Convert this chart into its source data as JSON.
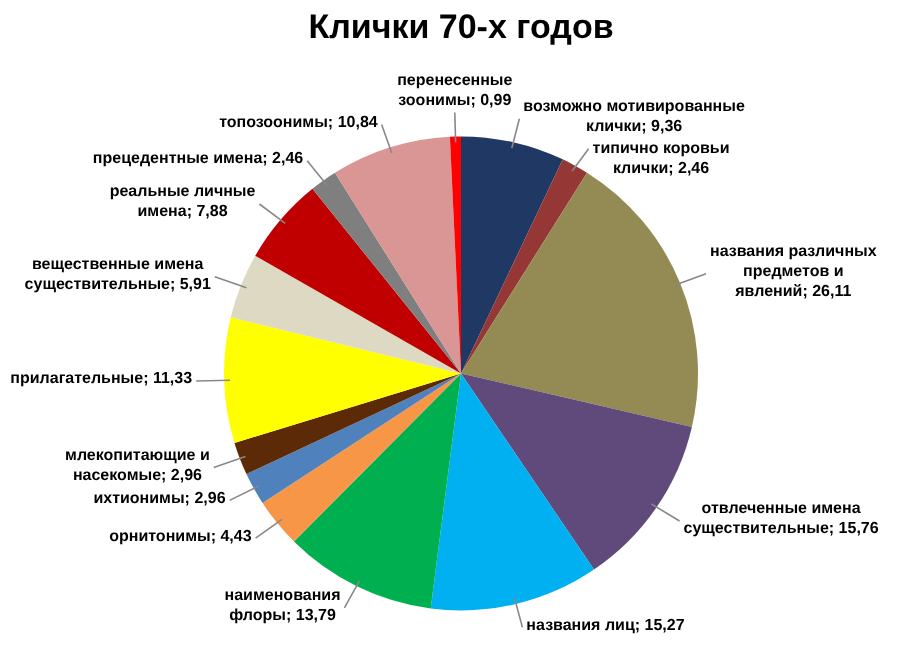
{
  "chart_data": {
    "type": "pie",
    "title": "Клички 70-х годов",
    "categories": [
      "возможно мотивированные клички",
      "типично коровьи клички",
      "названия различных предметов и явлений",
      "отвлеченные имена существительные",
      "названия лиц",
      "наименования флоры",
      "орнитонимы",
      "ихтионимы",
      "млекопитающие и насекомые",
      "прилагательные",
      "вещественные имена существительные",
      "реальные личные имена",
      "прецедентные имена",
      "топозоонимы",
      "перенесенные зоонимы"
    ],
    "values": [
      9.36,
      2.46,
      26.11,
      15.76,
      15.27,
      13.79,
      4.43,
      2.96,
      2.96,
      11.33,
      5.91,
      7.88,
      2.46,
      10.84,
      0.99
    ],
    "value_labels": [
      "9,36",
      "2,46",
      "26,11",
      "15,76",
      "15,27",
      "13,79",
      "4,43",
      "2,96",
      "2,96",
      "11,33",
      "5,91",
      "7,88",
      "2,46",
      "10,84",
      "0,99"
    ],
    "colors": [
      "#1f3864",
      "#953735",
      "#948a54",
      "#604a7b",
      "#00b0f0",
      "#00b050",
      "#f79646",
      "#4f81bd",
      "#5c2a06",
      "#ffff00",
      "#ddd9c3",
      "#c00000",
      "#7f7f7f",
      "#d99694",
      "#ff0000"
    ],
    "legend": false
  }
}
